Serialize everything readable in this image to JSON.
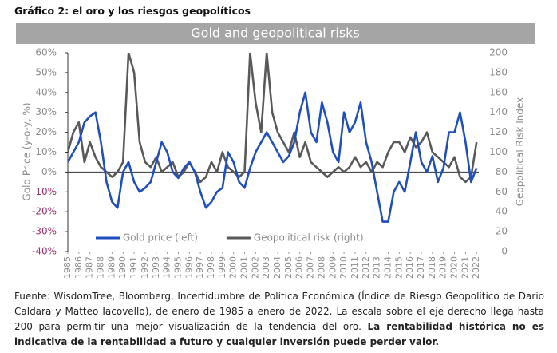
{
  "heading": "Gráfico 2: el oro y los riesgos geopolíticos",
  "chart_data": {
    "type": "line",
    "title": "Gold and geopolitical risks",
    "y_label": "Gold Price (y-o-y, %)",
    "y2_label": "Geopolitical Risk Index",
    "x": [
      1985,
      1985.5,
      1986,
      1986.5,
      1987,
      1987.5,
      1988,
      1988.5,
      1989,
      1989.5,
      1990,
      1990.5,
      1991,
      1991.5,
      1992,
      1992.5,
      1993,
      1993.5,
      1994,
      1994.5,
      1995,
      1995.5,
      1996,
      1996.5,
      1997,
      1997.5,
      1998,
      1998.5,
      1999,
      1999.5,
      2000,
      2000.5,
      2001,
      2001.5,
      2002,
      2002.5,
      2003,
      2003.5,
      2004,
      2004.5,
      2005,
      2005.5,
      2006,
      2006.5,
      2007,
      2007.5,
      2008,
      2008.5,
      2009,
      2009.5,
      2010,
      2010.5,
      2011,
      2011.5,
      2012,
      2012.5,
      2013,
      2013.5,
      2014,
      2014.5,
      2015,
      2015.5,
      2016,
      2016.5,
      2017,
      2017.5,
      2018,
      2018.5,
      2019,
      2019.5,
      2020,
      2020.5,
      2021,
      2021.5,
      2022
    ],
    "xlim": [
      1985,
      2022.2
    ],
    "xticks": [
      1985,
      1986,
      1987,
      1988,
      1989,
      1990,
      1991,
      1992,
      1993,
      1994,
      1995,
      1996,
      1997,
      1998,
      1999,
      2000,
      2001,
      2002,
      2003,
      2004,
      2005,
      2006,
      2007,
      2008,
      2009,
      2010,
      2011,
      2012,
      2013,
      2014,
      2015,
      2016,
      2017,
      2018,
      2019,
      2020,
      2021,
      2022
    ],
    "ylim": [
      -40,
      60
    ],
    "yticks": [
      {
        "value": -40,
        "label": "-40%"
      },
      {
        "value": -30,
        "label": "-30%"
      },
      {
        "value": -20,
        "label": "-20%"
      },
      {
        "value": -10,
        "label": "-10%"
      },
      {
        "value": 0,
        "label": "0%"
      },
      {
        "value": 10,
        "label": "10%"
      },
      {
        "value": 20,
        "label": "20%"
      },
      {
        "value": 30,
        "label": "30%"
      },
      {
        "value": 40,
        "label": "40%"
      },
      {
        "value": 50,
        "label": "50%"
      },
      {
        "value": 60,
        "label": "60%"
      }
    ],
    "y2lim": [
      0,
      200
    ],
    "y2ticks": [
      0,
      20,
      40,
      60,
      80,
      100,
      120,
      140,
      160,
      180,
      200
    ],
    "legend": "lower left",
    "series": [
      {
        "name": "Gold price (left)",
        "color": "#1f4fbf",
        "values": [
          5,
          10,
          15,
          25,
          28,
          30,
          15,
          -5,
          -15,
          -18,
          0,
          5,
          -5,
          -10,
          -8,
          -5,
          5,
          15,
          10,
          0,
          -3,
          2,
          5,
          0,
          -10,
          -18,
          -15,
          -10,
          -8,
          10,
          5,
          -5,
          -8,
          2,
          10,
          15,
          20,
          15,
          10,
          5,
          8,
          15,
          30,
          40,
          20,
          15,
          35,
          25,
          10,
          5,
          30,
          20,
          25,
          35,
          15,
          5,
          -10,
          -25,
          -25,
          -10,
          -5,
          -10,
          5,
          20,
          5,
          0,
          8,
          -5,
          2,
          20,
          20,
          30,
          15,
          -5,
          2
        ]
      },
      {
        "name": "Geopolitical risk (right)",
        "color": "#595959",
        "axis": "y2",
        "values": [
          100,
          120,
          130,
          90,
          110,
          95,
          85,
          80,
          75,
          80,
          90,
          200,
          180,
          110,
          90,
          85,
          95,
          80,
          85,
          90,
          75,
          80,
          90,
          80,
          70,
          75,
          90,
          80,
          100,
          85,
          80,
          75,
          80,
          200,
          150,
          120,
          200,
          140,
          120,
          110,
          100,
          120,
          95,
          110,
          90,
          85,
          80,
          75,
          80,
          85,
          80,
          85,
          95,
          85,
          90,
          80,
          90,
          85,
          100,
          110,
          110,
          100,
          115,
          105,
          110,
          120,
          100,
          95,
          90,
          85,
          95,
          75,
          70,
          75,
          110
        ]
      }
    ]
  },
  "footnote": {
    "text": "Fuente: WisdomTree, Bloomberg, Incertidumbre de Política Económica (Índice de Riesgo Geopolítico de Dario Caldara y Matteo Iacovello), de enero de 1985 a enero de 2022. La escala sobre el eje derecho llega hasta 200 para permitir una mejor visualización de la tendencia del oro.",
    "bold": "La rentabilidad histórica no es indicativa de la rentabilidad a futuro y cualquier inversión puede perder valor."
  }
}
